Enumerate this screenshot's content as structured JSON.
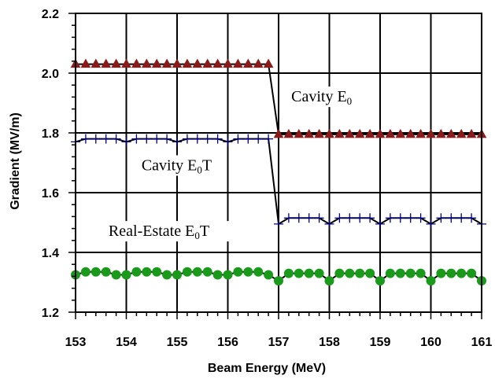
{
  "chart_data": {
    "type": "line",
    "xlabel": "Beam Energy (MeV)",
    "ylabel": "Gradient (MV/m)",
    "xlim": [
      153,
      161
    ],
    "ylim": [
      1.2,
      2.2
    ],
    "x_ticks": [
      "153",
      "154",
      "155",
      "156",
      "157",
      "158",
      "159",
      "160",
      "161"
    ],
    "y_ticks": [
      "1.2",
      "1.4",
      "1.6",
      "1.8",
      "2.0",
      "2.2"
    ],
    "grid": true,
    "annotations": [
      {
        "main": "Cavity E",
        "sub": "0",
        "tail": "",
        "x": 157.25,
        "y": 1.905
      },
      {
        "main": "Cavity E",
        "sub": "0",
        "tail": "T",
        "x": 154.3,
        "y": 1.675
      },
      {
        "main": "Real-Estate E",
        "sub": "0",
        "tail": "T",
        "x": 153.65,
        "y": 1.455
      }
    ],
    "series": [
      {
        "marker": "triangle",
        "color": "#8B1A1A",
        "x": [
          153.0,
          153.2,
          153.4,
          153.6,
          153.8,
          154.0,
          154.2,
          154.4,
          154.6,
          154.8,
          155.0,
          155.2,
          155.4,
          155.6,
          155.8,
          156.0,
          156.2,
          156.4,
          156.6,
          156.8,
          157.0,
          157.2,
          157.4,
          157.6,
          157.8,
          158.0,
          158.2,
          158.4,
          158.6,
          158.8,
          159.0,
          159.2,
          159.4,
          159.6,
          159.8,
          160.0,
          160.2,
          160.4,
          160.6,
          160.8,
          161.0
        ],
        "y": [
          2.03,
          2.03,
          2.03,
          2.03,
          2.03,
          2.03,
          2.03,
          2.03,
          2.03,
          2.03,
          2.03,
          2.03,
          2.03,
          2.03,
          2.03,
          2.03,
          2.03,
          2.03,
          2.03,
          2.03,
          1.795,
          1.795,
          1.795,
          1.795,
          1.795,
          1.795,
          1.795,
          1.795,
          1.795,
          1.795,
          1.795,
          1.795,
          1.795,
          1.795,
          1.795,
          1.795,
          1.795,
          1.795,
          1.795,
          1.795,
          1.795
        ]
      },
      {
        "marker": "plus",
        "color": "#000080",
        "x": [
          153.0,
          153.2,
          153.4,
          153.6,
          153.8,
          154.0,
          154.2,
          154.4,
          154.6,
          154.8,
          155.0,
          155.2,
          155.4,
          155.6,
          155.8,
          156.0,
          156.2,
          156.4,
          156.6,
          156.8,
          157.0,
          157.2,
          157.4,
          157.6,
          157.8,
          158.0,
          158.2,
          158.4,
          158.6,
          158.8,
          159.0,
          159.2,
          159.4,
          159.6,
          159.8,
          160.0,
          160.2,
          160.4,
          160.6,
          160.8,
          161.0
        ],
        "y": [
          1.77,
          1.78,
          1.78,
          1.78,
          1.78,
          1.77,
          1.78,
          1.78,
          1.78,
          1.78,
          1.77,
          1.78,
          1.78,
          1.78,
          1.78,
          1.77,
          1.78,
          1.78,
          1.78,
          1.78,
          1.495,
          1.515,
          1.515,
          1.515,
          1.515,
          1.495,
          1.515,
          1.515,
          1.515,
          1.515,
          1.495,
          1.515,
          1.515,
          1.515,
          1.515,
          1.495,
          1.515,
          1.515,
          1.515,
          1.515,
          1.495
        ]
      },
      {
        "marker": "circle",
        "color": "#1A9A1A",
        "x": [
          153.0,
          153.2,
          153.4,
          153.6,
          153.8,
          154.0,
          154.2,
          154.4,
          154.6,
          154.8,
          155.0,
          155.2,
          155.4,
          155.6,
          155.8,
          156.0,
          156.2,
          156.4,
          156.6,
          156.8,
          157.0,
          157.2,
          157.4,
          157.6,
          157.8,
          158.0,
          158.2,
          158.4,
          158.6,
          158.8,
          159.0,
          159.2,
          159.4,
          159.6,
          159.8,
          160.0,
          160.2,
          160.4,
          160.6,
          160.8,
          161.0
        ],
        "y": [
          1.325,
          1.335,
          1.335,
          1.335,
          1.325,
          1.325,
          1.335,
          1.335,
          1.335,
          1.325,
          1.325,
          1.335,
          1.335,
          1.335,
          1.325,
          1.325,
          1.335,
          1.335,
          1.335,
          1.325,
          1.305,
          1.33,
          1.33,
          1.33,
          1.33,
          1.305,
          1.33,
          1.33,
          1.33,
          1.33,
          1.305,
          1.33,
          1.33,
          1.33,
          1.33,
          1.305,
          1.33,
          1.33,
          1.33,
          1.33,
          1.305
        ]
      }
    ]
  }
}
